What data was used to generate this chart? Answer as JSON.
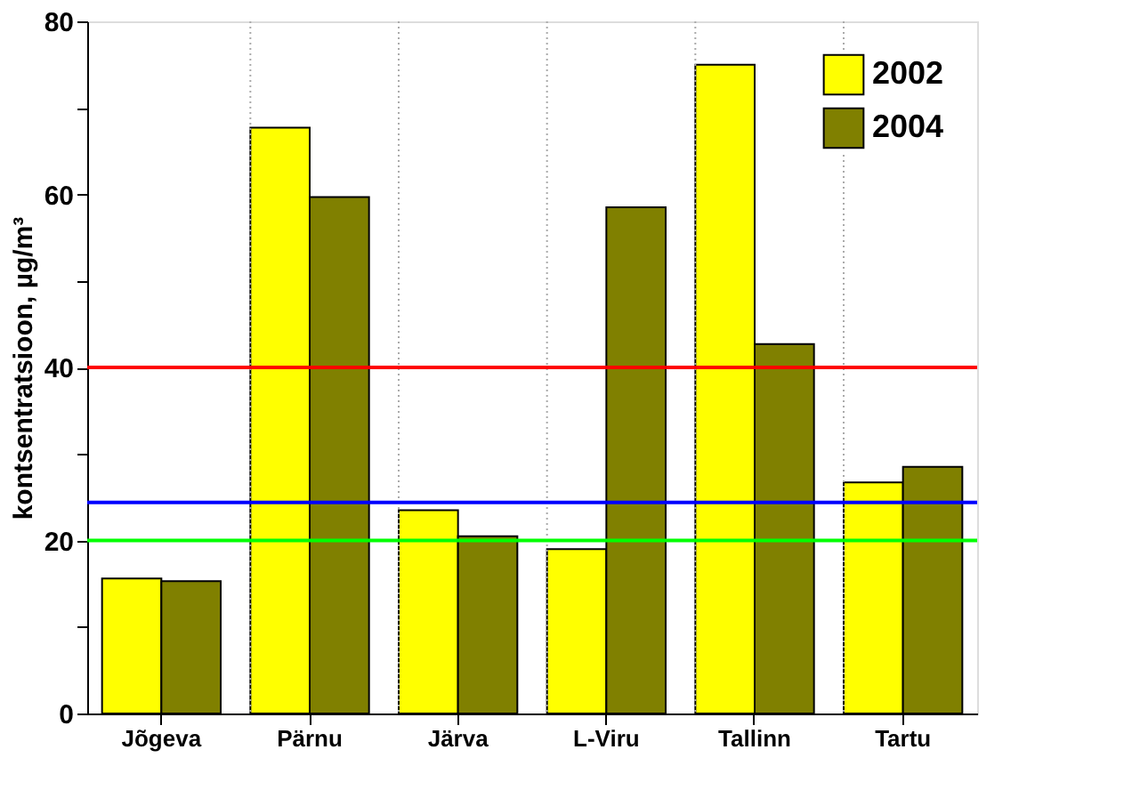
{
  "chart_data": {
    "type": "bar",
    "ylabel": "kontsentratsioon, µg/m³",
    "categories": [
      "Jõgeva",
      "Pärnu",
      "Järva",
      "L-Viru",
      "Tallinn",
      "Tartu"
    ],
    "series": [
      {
        "name": "2002",
        "color": "#ffff00",
        "values": [
          15.6,
          67.7,
          23.5,
          19.0,
          75.0,
          26.7
        ]
      },
      {
        "name": "2004",
        "color": "#808000",
        "values": [
          15.3,
          59.7,
          20.5,
          58.5,
          42.7,
          28.5
        ]
      }
    ],
    "ylim": [
      0,
      80
    ],
    "yticks": [
      0,
      {
        "value": 10,
        "label": null
      },
      20,
      {
        "value": 30,
        "label": null
      },
      40,
      {
        "value": 50,
        "label": null
      },
      60,
      {
        "value": 70,
        "label": null
      },
      80
    ],
    "ref_lines": [
      {
        "axis": "y",
        "value": 40,
        "color": "#ff0000"
      },
      {
        "axis": "y",
        "value": 24.4,
        "color": "#0000ff"
      },
      {
        "axis": "y",
        "value": 20,
        "color": "#00ff00"
      }
    ],
    "grid": "x",
    "legend": "top right"
  }
}
